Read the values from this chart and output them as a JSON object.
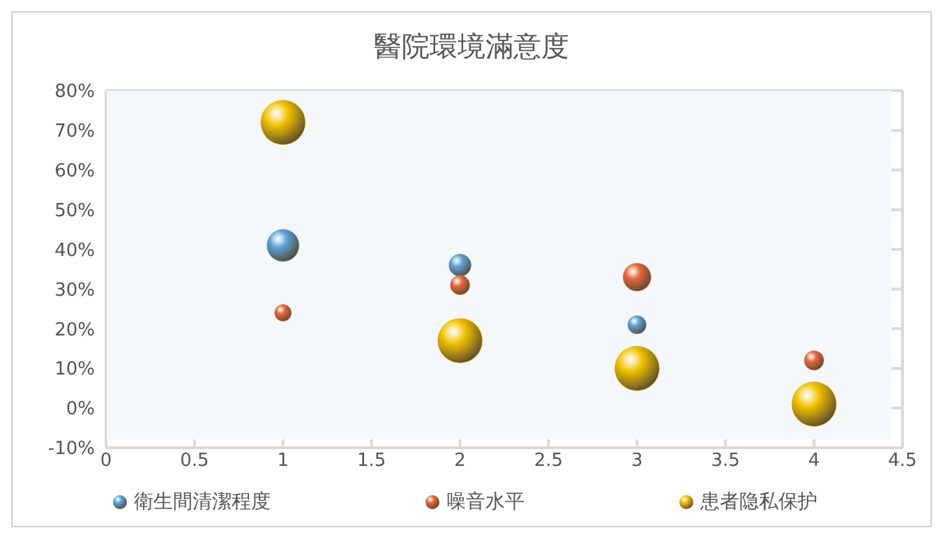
{
  "chart_data": {
    "type": "bubble",
    "title": "醫院環境滿意度",
    "series": [
      {
        "name": "衛生間清潔程度",
        "color": "#5ba3dc",
        "x": [
          1,
          2,
          3
        ],
        "values": [
          41,
          36,
          21
        ],
        "sizes": [
          0.52,
          0.25,
          0.17
        ]
      },
      {
        "name": "噪音水平",
        "color": "#e8673a",
        "x": [
          1,
          2,
          3,
          4
        ],
        "values": [
          24,
          31,
          33,
          12
        ],
        "sizes": [
          0.14,
          0.19,
          0.39,
          0.19
        ]
      },
      {
        "name": "患者隐私保护",
        "color": "#f2c200",
        "x": [
          1,
          2,
          3,
          4
        ],
        "values": [
          72,
          17,
          10,
          1
        ],
        "sizes": [
          1,
          1,
          1,
          1
        ]
      }
    ],
    "xlim": [
      0,
      4.5
    ],
    "xticks": [
      0,
      0.5,
      1,
      1.5,
      2,
      2.5,
      3,
      3.5,
      4,
      4.5
    ],
    "ylim": [
      -10,
      80
    ],
    "yticks": [
      {
        "value": -10,
        "label": "-10%"
      },
      {
        "value": 0,
        "label": "0%"
      },
      {
        "value": 10,
        "label": "10%"
      },
      {
        "value": 20,
        "label": "20%"
      },
      {
        "value": 30,
        "label": "30%"
      },
      {
        "value": 40,
        "label": "40%"
      },
      {
        "value": 50,
        "label": "50%"
      },
      {
        "value": 60,
        "label": "60%"
      },
      {
        "value": 70,
        "label": "70%"
      },
      {
        "value": 80,
        "label": "80%"
      }
    ],
    "grid": true,
    "legend": "bottom"
  }
}
